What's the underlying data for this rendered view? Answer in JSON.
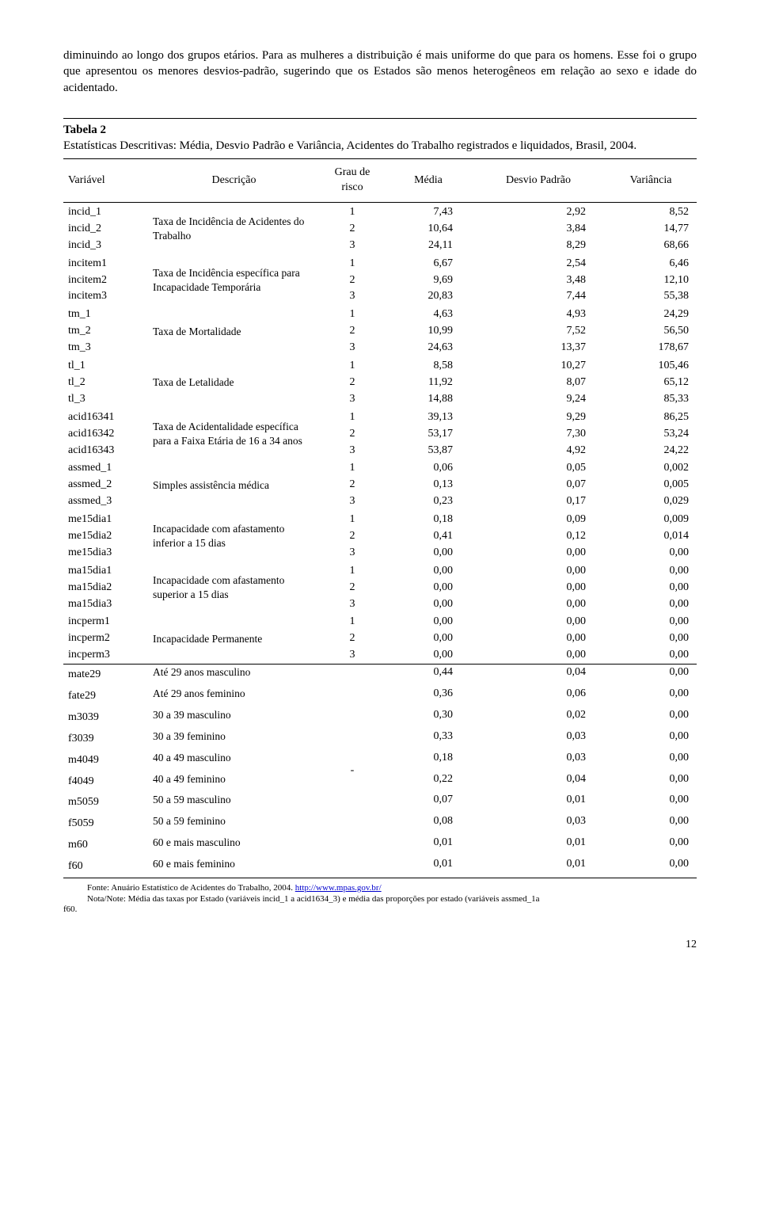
{
  "paragraph": "diminuindo ao longo dos grupos etários. Para as mulheres a distribuição é mais uniforme do que para os homens. Esse foi o grupo que apresentou os menores desvios-padrão, sugerindo que os Estados são menos heterogêneos em relação ao sexo e idade do acidentado.",
  "table": {
    "name": "Tabela 2",
    "desc": "Estatísticas Descritivas: Média, Desvio Padrão e Variância, Acidentes do Trabalho registrados e liquidados, Brasil, 2004.",
    "headers": {
      "variavel": "Variável",
      "descricao": "Descrição",
      "grau": "Grau de risco",
      "media": "Média",
      "desvio": "Desvio Padrão",
      "variancia": "Variância"
    },
    "groups": [
      {
        "desc": "Taxa de Incidência de Acidentes do Trabalho",
        "rows": [
          {
            "var": "incid_1",
            "grau": "1",
            "media": "7,43",
            "dp": "2,92",
            "var2": "8,52"
          },
          {
            "var": "incid_2",
            "grau": "2",
            "media": "10,64",
            "dp": "3,84",
            "var2": "14,77"
          },
          {
            "var": "incid_3",
            "grau": "3",
            "media": "24,11",
            "dp": "8,29",
            "var2": "68,66"
          }
        ]
      },
      {
        "desc": "Taxa de Incidência específica para Incapacidade Temporária",
        "rows": [
          {
            "var": "incitem1",
            "grau": "1",
            "media": "6,67",
            "dp": "2,54",
            "var2": "6,46"
          },
          {
            "var": "incitem2",
            "grau": "2",
            "media": "9,69",
            "dp": "3,48",
            "var2": "12,10"
          },
          {
            "var": "incitem3",
            "grau": "3",
            "media": "20,83",
            "dp": "7,44",
            "var2": "55,38"
          }
        ]
      },
      {
        "desc": "Taxa de Mortalidade",
        "rows": [
          {
            "var": "tm_1",
            "grau": "1",
            "media": "4,63",
            "dp": "4,93",
            "var2": "24,29"
          },
          {
            "var": "tm_2",
            "grau": "2",
            "media": "10,99",
            "dp": "7,52",
            "var2": "56,50"
          },
          {
            "var": "tm_3",
            "grau": "3",
            "media": "24,63",
            "dp": "13,37",
            "var2": "178,67"
          }
        ]
      },
      {
        "desc": "Taxa de Letalidade",
        "rows": [
          {
            "var": "tl_1",
            "grau": "1",
            "media": "8,58",
            "dp": "10,27",
            "var2": "105,46"
          },
          {
            "var": "tl_2",
            "grau": "2",
            "media": "11,92",
            "dp": "8,07",
            "var2": "65,12"
          },
          {
            "var": "tl_3",
            "grau": "3",
            "media": "14,88",
            "dp": "9,24",
            "var2": "85,33"
          }
        ]
      },
      {
        "desc": "Taxa de Acidentalidade específica para a Faixa Etária de 16 a 34 anos",
        "rows": [
          {
            "var": "acid16341",
            "grau": "1",
            "media": "39,13",
            "dp": "9,29",
            "var2": "86,25"
          },
          {
            "var": "acid16342",
            "grau": "2",
            "media": "53,17",
            "dp": "7,30",
            "var2": "53,24"
          },
          {
            "var": "acid16343",
            "grau": "3",
            "media": "53,87",
            "dp": "4,92",
            "var2": "24,22"
          }
        ]
      },
      {
        "desc": "Simples assistência médica",
        "rows": [
          {
            "var": "assmed_1",
            "grau": "1",
            "media": "0,06",
            "dp": "0,05",
            "var2": "0,002"
          },
          {
            "var": "assmed_2",
            "grau": "2",
            "media": "0,13",
            "dp": "0,07",
            "var2": "0,005"
          },
          {
            "var": "assmed_3",
            "grau": "3",
            "media": "0,23",
            "dp": "0,17",
            "var2": "0,029"
          }
        ]
      },
      {
        "desc": "Incapacidade com afastamento inferior a 15 dias",
        "rows": [
          {
            "var": "me15dia1",
            "grau": "1",
            "media": "0,18",
            "dp": "0,09",
            "var2": "0,009"
          },
          {
            "var": "me15dia2",
            "grau": "2",
            "media": "0,41",
            "dp": "0,12",
            "var2": "0,014"
          },
          {
            "var": "me15dia3",
            "grau": "3",
            "media": "0,00",
            "dp": "0,00",
            "var2": "0,00"
          }
        ]
      },
      {
        "desc": "Incapacidade com afastamento superior a 15 dias",
        "rows": [
          {
            "var": "ma15dia1",
            "grau": "1",
            "media": "0,00",
            "dp": "0,00",
            "var2": "0,00"
          },
          {
            "var": "ma15dia2",
            "grau": "2",
            "media": "0,00",
            "dp": "0,00",
            "var2": "0,00"
          },
          {
            "var": "ma15dia3",
            "grau": "3",
            "media": "0,00",
            "dp": "0,00",
            "var2": "0,00"
          }
        ]
      },
      {
        "desc": "Incapacidade Permanente",
        "rows": [
          {
            "var": "incperm1",
            "grau": "1",
            "media": "0,00",
            "dp": "0,00",
            "var2": "0,00"
          },
          {
            "var": "incperm2",
            "grau": "2",
            "media": "0,00",
            "dp": "0,00",
            "var2": "0,00"
          },
          {
            "var": "incperm3",
            "grau": "3",
            "media": "0,00",
            "dp": "0,00",
            "var2": "0,00"
          }
        ]
      }
    ],
    "single_rows_grau": "-",
    "single_rows": [
      {
        "var": "mate29",
        "desc": "Até 29 anos masculino",
        "media": "0,44",
        "dp": "0,04",
        "var2": "0,00"
      },
      {
        "var": "fate29",
        "desc": "Até 29 anos feminino",
        "media": "0,36",
        "dp": "0,06",
        "var2": "0,00"
      },
      {
        "var": "m3039",
        "desc": "30 a 39 masculino",
        "media": "0,30",
        "dp": "0,02",
        "var2": "0,00"
      },
      {
        "var": "f3039",
        "desc": "30 a 39 feminino",
        "media": "0,33",
        "dp": "0,03",
        "var2": "0,00"
      },
      {
        "var": "m4049",
        "desc": "40 a 49 masculino",
        "media": "0,18",
        "dp": "0,03",
        "var2": "0,00"
      },
      {
        "var": "f4049",
        "desc": "40 a 49 feminino",
        "media": "0,22",
        "dp": "0,04",
        "var2": "0,00"
      },
      {
        "var": "m5059",
        "desc": "50 a 59 masculino",
        "media": "0,07",
        "dp": "0,01",
        "var2": "0,00"
      },
      {
        "var": "f5059",
        "desc": "50 a 59 feminino",
        "media": "0,08",
        "dp": "0,03",
        "var2": "0,00"
      },
      {
        "var": "m60",
        "desc": "60 e mais masculino",
        "media": "0,01",
        "dp": "0,01",
        "var2": "0,00"
      },
      {
        "var": "f60",
        "desc": "60 e mais feminino",
        "media": "0,01",
        "dp": "0,01",
        "var2": "0,00"
      }
    ]
  },
  "footnote": {
    "fonte_label": "Fonte: Anuário Estatístico de Acidentes do Trabalho, 2004. ",
    "url": "http://www.mpas.gov.br/",
    "nota": "Nota/Note: Média das taxas por Estado (variáveis incid_1 a acid1634_3) e média das proporções por estado (variáveis assmed_1a",
    "cont": "f60."
  },
  "page_number": "12"
}
